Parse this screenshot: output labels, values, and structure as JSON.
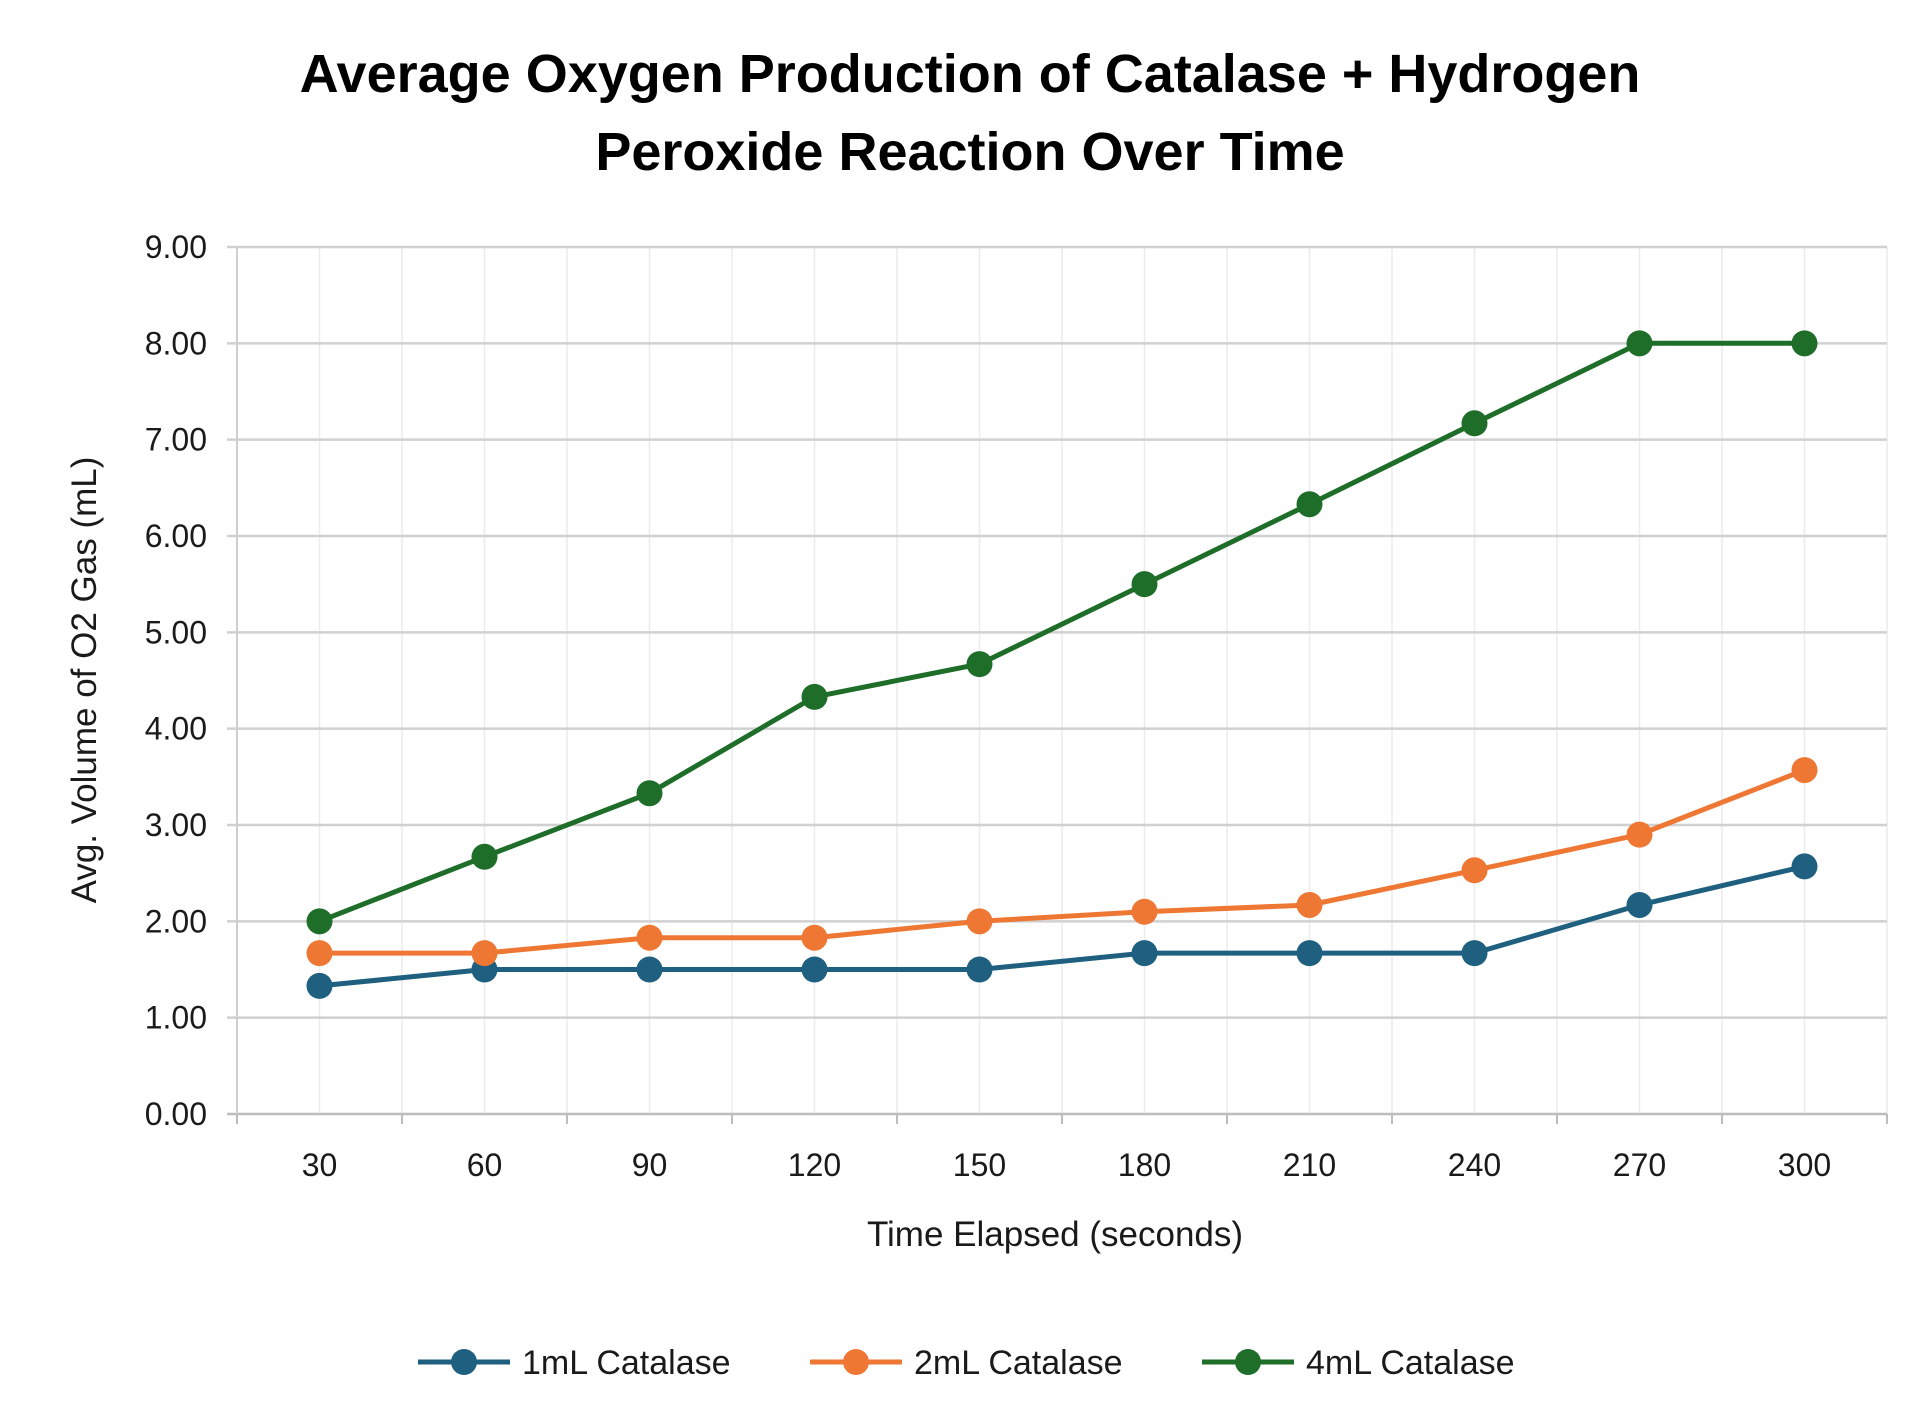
{
  "chart_data": {
    "type": "line",
    "title_lines": [
      "Average Oxygen Production of Catalase + Hydrogen",
      "Peroxide Reaction Over Time"
    ],
    "xlabel": "Time Elapsed (seconds)",
    "ylabel": "Avg. Volume of O2 Gas (mL)",
    "categories": [
      "30",
      "60",
      "90",
      "120",
      "150",
      "180",
      "210",
      "240",
      "270",
      "300"
    ],
    "ylim": [
      0,
      9
    ],
    "yticks": [
      "0.00",
      "1.00",
      "2.00",
      "3.00",
      "4.00",
      "5.00",
      "6.00",
      "7.00",
      "8.00",
      "9.00"
    ],
    "grid": true,
    "legend_position": "bottom",
    "series": [
      {
        "name": "1mL Catalase",
        "color": "#1f5f7f",
        "values": [
          1.33,
          1.5,
          1.5,
          1.5,
          1.5,
          1.67,
          1.67,
          1.67,
          2.17,
          2.57
        ]
      },
      {
        "name": "2mL Catalase",
        "color": "#ee7733",
        "values": [
          1.67,
          1.67,
          1.83,
          1.83,
          2.0,
          2.1,
          2.17,
          2.53,
          2.9,
          3.57
        ]
      },
      {
        "name": "4mL Catalase",
        "color": "#1e6e2a",
        "values": [
          2.0,
          2.67,
          3.33,
          4.33,
          4.67,
          5.5,
          6.33,
          7.17,
          8.0,
          8.0
        ]
      }
    ]
  }
}
